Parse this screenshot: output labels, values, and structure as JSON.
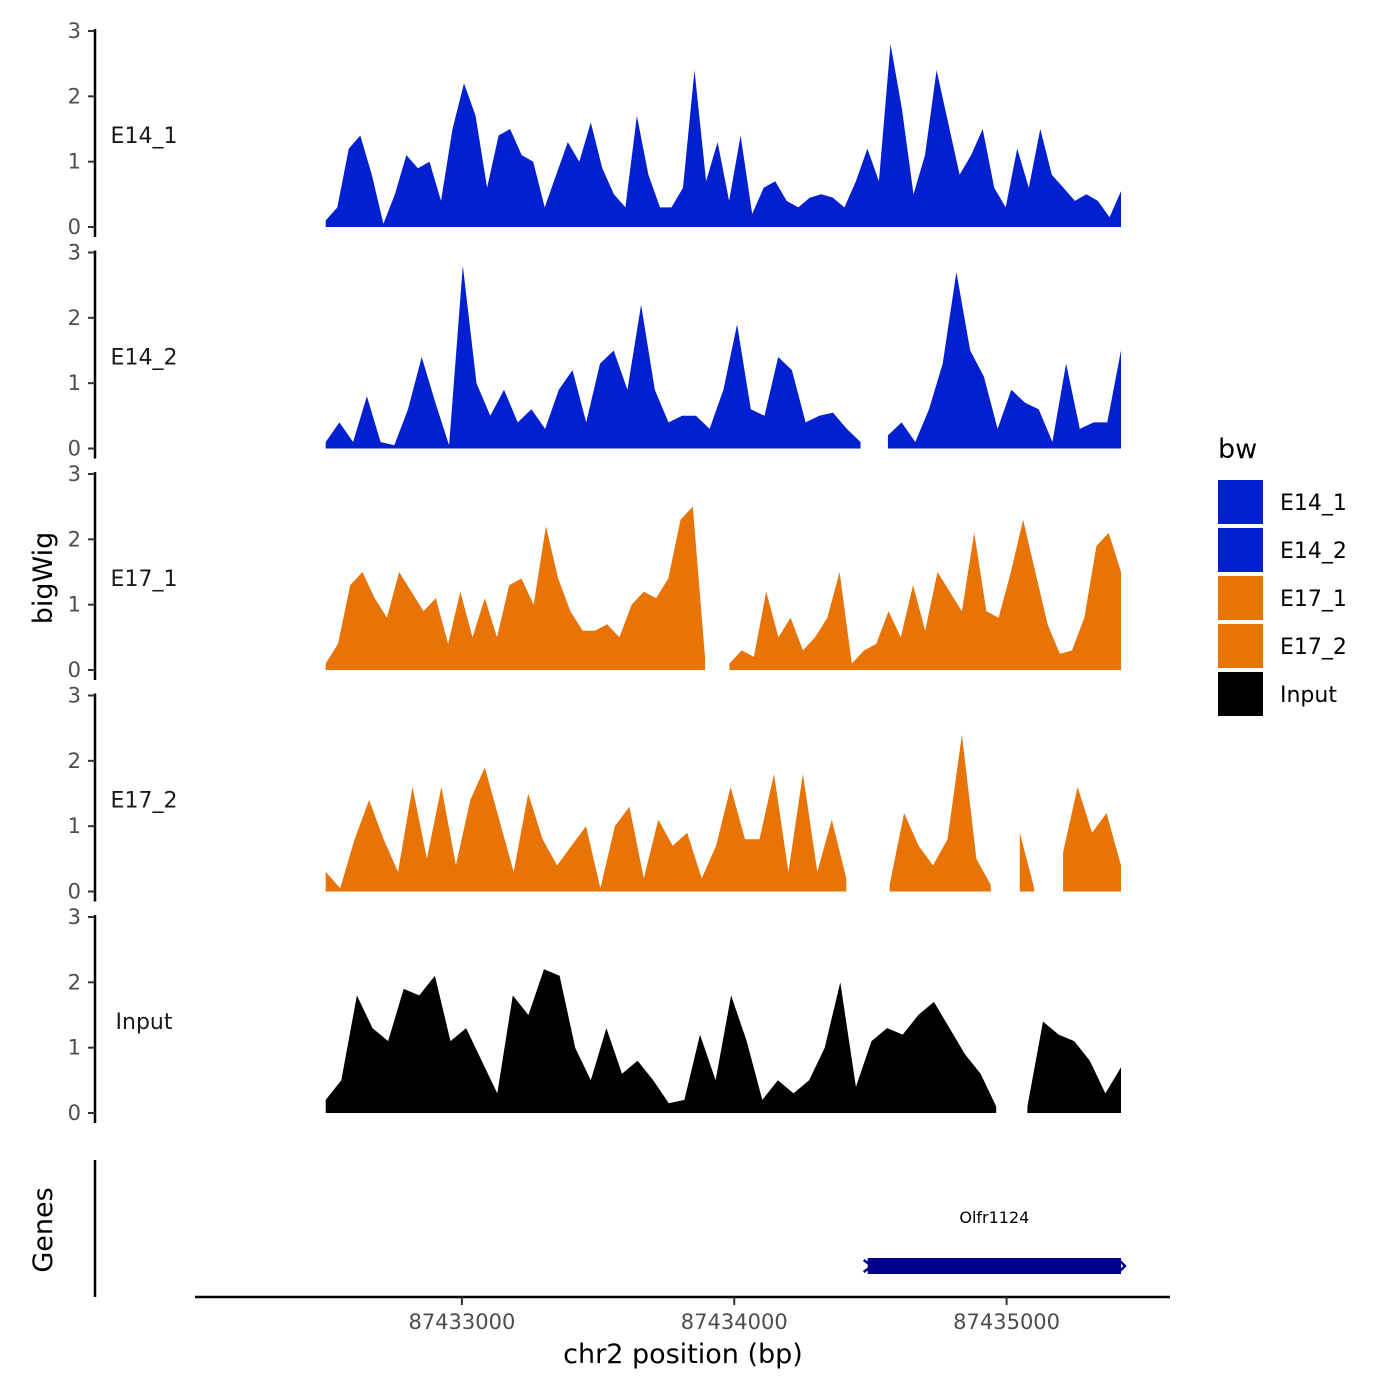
{
  "chart_data": {
    "type": "area",
    "title": "",
    "xlabel": "chr2 position (bp)",
    "ylabel": "bigWig",
    "genes_label": "Genes",
    "xlim": [
      87432020,
      87435600
    ],
    "x_ticks": [
      87433000,
      87434000,
      87435000
    ],
    "x_tick_labels": [
      "87433000",
      "87434000",
      "87435000"
    ],
    "ylim": [
      0,
      3
    ],
    "y_ticks": [
      0,
      1,
      2,
      3
    ],
    "y_tick_labels": [
      "0",
      "1",
      "2",
      "3"
    ],
    "grid": false,
    "legend": {
      "title": "bw",
      "placement": "right",
      "entries": [
        {
          "label": "E14_1",
          "color": "#0220D0"
        },
        {
          "label": "E14_2",
          "color": "#0220D0"
        },
        {
          "label": "E17_1",
          "color": "#E87306"
        },
        {
          "label": "E17_2",
          "color": "#E87306"
        },
        {
          "label": "Input",
          "color": "#000000"
        }
      ]
    },
    "x_start": 87432500,
    "x_end": 87435420,
    "series": [
      {
        "name": "E14_1",
        "color": "#0220D0",
        "values": [
          0.1,
          0.3,
          1.2,
          1.4,
          0.8,
          0.05,
          0.5,
          1.1,
          0.9,
          1.0,
          0.4,
          1.5,
          2.2,
          1.7,
          0.6,
          1.4,
          1.5,
          1.1,
          1.0,
          0.3,
          0.8,
          1.3,
          1.0,
          1.6,
          0.9,
          0.5,
          0.3,
          1.7,
          0.8,
          0.3,
          0.3,
          0.6,
          2.4,
          0.7,
          1.3,
          0.4,
          1.4,
          0.2,
          0.6,
          0.7,
          0.4,
          0.3,
          0.45,
          0.5,
          0.45,
          0.3,
          0.7,
          1.2,
          0.7,
          2.8,
          1.8,
          0.5,
          1.1,
          2.4,
          1.6,
          0.8,
          1.1,
          1.5,
          0.6,
          0.3,
          1.2,
          0.6,
          1.5,
          0.8,
          0.6,
          0.4,
          0.5,
          0.4,
          0.15,
          0.55
        ]
      },
      {
        "name": "E14_2",
        "color": "#0220D0",
        "values": [
          0.1,
          0.4,
          0.1,
          0.8,
          0.1,
          0.05,
          0.6,
          1.4,
          0.7,
          0.05,
          2.8,
          1.0,
          0.5,
          0.9,
          0.4,
          0.6,
          0.3,
          0.9,
          1.2,
          0.4,
          1.3,
          1.5,
          0.9,
          2.2,
          0.9,
          0.4,
          0.5,
          0.5,
          0.3,
          0.9,
          1.9,
          0.6,
          0.5,
          1.4,
          1.2,
          0.4,
          0.5,
          0.55,
          0.3,
          0.1,
          null,
          0.2,
          0.4,
          0.1,
          0.6,
          1.3,
          2.7,
          1.5,
          1.1,
          0.3,
          0.9,
          0.7,
          0.6,
          0.1,
          1.3,
          0.3,
          0.4,
          0.4,
          1.5
        ]
      },
      {
        "name": "E17_1",
        "color": "#E87306",
        "values": [
          0.1,
          0.4,
          1.3,
          1.5,
          1.1,
          0.8,
          1.5,
          1.2,
          0.9,
          1.1,
          0.4,
          1.2,
          0.5,
          1.1,
          0.5,
          1.3,
          1.4,
          1.0,
          2.2,
          1.4,
          0.9,
          0.6,
          0.6,
          0.7,
          0.5,
          1.0,
          1.2,
          1.1,
          1.4,
          2.3,
          2.5,
          0.2,
          null,
          0.1,
          0.3,
          0.2,
          1.2,
          0.5,
          0.8,
          0.3,
          0.5,
          0.8,
          1.5,
          0.1,
          0.3,
          0.4,
          0.9,
          0.5,
          1.3,
          0.6,
          1.5,
          1.2,
          0.9,
          2.1,
          0.9,
          0.8,
          1.5,
          2.3,
          1.5,
          0.7,
          0.25,
          0.3,
          0.8,
          1.9,
          2.1,
          1.5
        ]
      },
      {
        "name": "E17_2",
        "color": "#E87306",
        "values": [
          0.3,
          0.05,
          0.8,
          1.4,
          0.8,
          0.3,
          1.6,
          0.5,
          1.6,
          0.4,
          1.4,
          1.9,
          1.1,
          0.3,
          1.5,
          0.8,
          0.4,
          0.7,
          1.0,
          0.05,
          1.0,
          1.3,
          0.2,
          1.1,
          0.7,
          0.9,
          0.2,
          0.7,
          1.6,
          0.8,
          0.8,
          1.8,
          0.3,
          1.8,
          0.3,
          1.1,
          0.2,
          null,
          null,
          0.1,
          1.2,
          0.7,
          0.4,
          0.8,
          2.4,
          0.5,
          0.1,
          null,
          0.9,
          0.05,
          null,
          0.6,
          1.6,
          0.9,
          1.2,
          0.4
        ]
      },
      {
        "name": "Input",
        "color": "#000000",
        "values": [
          0.2,
          0.5,
          1.8,
          1.3,
          1.1,
          1.9,
          1.8,
          2.1,
          1.1,
          1.3,
          0.8,
          0.3,
          1.8,
          1.5,
          2.2,
          2.1,
          1.0,
          0.5,
          1.3,
          0.6,
          0.8,
          0.5,
          0.15,
          0.2,
          1.2,
          0.5,
          1.8,
          1.1,
          0.2,
          0.5,
          0.3,
          0.5,
          1.0,
          2.0,
          0.4,
          1.1,
          1.3,
          1.2,
          1.5,
          1.7,
          1.3,
          0.9,
          0.6,
          0.1,
          null,
          0.1,
          1.4,
          1.2,
          1.1,
          0.8,
          0.3,
          0.7
        ]
      }
    ],
    "genes": [
      {
        "name": "Olfr1124",
        "start": 87434490,
        "end": 87435420,
        "strand": "-",
        "color": "#00008B"
      }
    ]
  }
}
